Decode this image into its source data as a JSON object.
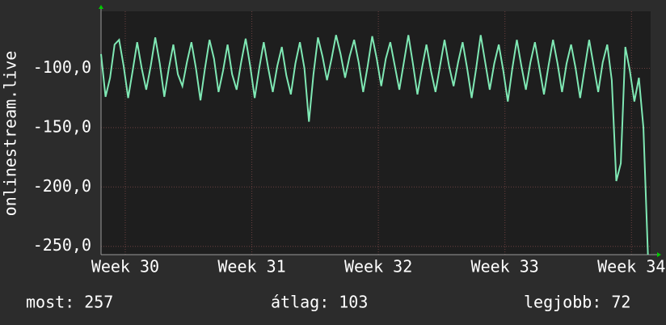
{
  "chart_data": {
    "type": "line",
    "y_label": "onlinestream.live",
    "xlim": [
      0,
      30.4
    ],
    "xticks": [
      {
        "value": 1.34,
        "label": "Week 30"
      },
      {
        "value": 8.34,
        "label": "Week 31"
      },
      {
        "value": 15.34,
        "label": "Week 32"
      },
      {
        "value": 22.34,
        "label": "Week 33"
      },
      {
        "value": 29.34,
        "label": "Week 34"
      }
    ],
    "ylim": [
      -257,
      -52
    ],
    "yticks": [
      {
        "value": -100,
        "label": "-100,0"
      },
      {
        "value": -150,
        "label": "-150,0"
      },
      {
        "value": -200,
        "label": "-200,0"
      },
      {
        "value": -250,
        "label": "-250,0"
      }
    ],
    "grid": true,
    "x": [
      0,
      0.25,
      0.5,
      0.75,
      1,
      1.25,
      1.5,
      1.75,
      2,
      2.25,
      2.5,
      2.75,
      3,
      3.25,
      3.5,
      3.75,
      4,
      4.25,
      4.5,
      4.75,
      5,
      5.25,
      5.5,
      5.75,
      6,
      6.25,
      6.5,
      6.75,
      7,
      7.25,
      7.5,
      7.75,
      8,
      8.25,
      8.5,
      8.75,
      9,
      9.25,
      9.5,
      9.75,
      10,
      10.25,
      10.5,
      10.75,
      11,
      11.25,
      11.5,
      11.75,
      12,
      12.25,
      12.5,
      12.75,
      13,
      13.25,
      13.5,
      13.75,
      14,
      14.25,
      14.5,
      14.75,
      15,
      15.25,
      15.5,
      15.75,
      16,
      16.25,
      16.5,
      16.75,
      17,
      17.25,
      17.5,
      17.75,
      18,
      18.25,
      18.5,
      18.75,
      19,
      19.25,
      19.5,
      19.75,
      20,
      20.25,
      20.5,
      20.75,
      21,
      21.25,
      21.5,
      21.75,
      22,
      22.25,
      22.5,
      22.75,
      23,
      23.25,
      23.5,
      23.75,
      24,
      24.25,
      24.5,
      24.75,
      25,
      25.25,
      25.5,
      25.75,
      26,
      26.25,
      26.5,
      26.75,
      27,
      27.25,
      27.5,
      27.75,
      28,
      28.25,
      28.5,
      28.75,
      29,
      29.25,
      29.5,
      29.75,
      30,
      30.25
    ],
    "series": [
      {
        "name": "onlinestream.live",
        "color": "#7fe8b4",
        "values": [
          -88,
          -124,
          -108,
          -80,
          -76,
          -98,
          -125,
          -102,
          -78,
          -100,
          -118,
          -98,
          -74,
          -96,
          -124,
          -100,
          -80,
          -105,
          -115,
          -95,
          -78,
          -100,
          -127,
          -100,
          -76,
          -92,
          -120,
          -102,
          -80,
          -105,
          -118,
          -95,
          -75,
          -98,
          -125,
          -100,
          -78,
          -100,
          -120,
          -98,
          -82,
          -106,
          -122,
          -96,
          -78,
          -100,
          -145,
          -105,
          -74,
          -90,
          -110,
          -92,
          -72,
          -88,
          -108,
          -90,
          -76,
          -95,
          -120,
          -98,
          -73,
          -92,
          -115,
          -92,
          -78,
          -98,
          -118,
          -95,
          -72,
          -96,
          -122,
          -100,
          -80,
          -102,
          -120,
          -98,
          -76,
          -98,
          -115,
          -95,
          -78,
          -100,
          -125,
          -100,
          -72,
          -95,
          -118,
          -96,
          -80,
          -102,
          -128,
          -100,
          -76,
          -98,
          -118,
          -95,
          -78,
          -100,
          -122,
          -98,
          -76,
          -96,
          -120,
          -96,
          -80,
          -100,
          -125,
          -100,
          -76,
          -98,
          -120,
          -95,
          -80,
          -110,
          -195,
          -180,
          -82,
          -102,
          -128,
          -108,
          -150,
          -257
        ]
      }
    ]
  },
  "stats": [
    {
      "label": "most:",
      "value": 257
    },
    {
      "label": "átlag:",
      "value": 103
    },
    {
      "label": "legjobb:",
      "value": 72
    }
  ]
}
